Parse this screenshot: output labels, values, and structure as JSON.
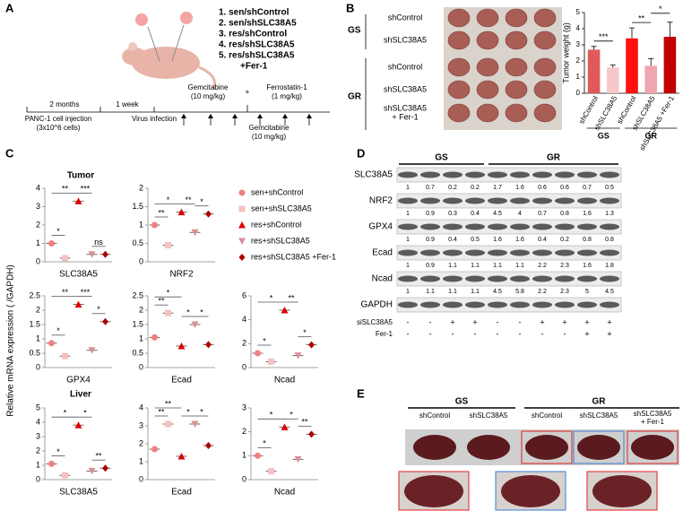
{
  "panel_labels": [
    "A",
    "B",
    "C",
    "D",
    "E"
  ],
  "panel_a": {
    "groups": [
      "1. sen/shControl",
      "2. sen/shSLC38A5",
      "3. res/shControl",
      "4. res/shSLC38A5",
      "5. res/shSLC38A5",
      "+Fer-1"
    ],
    "start": [
      "PANC-1 cell injection",
      "(3x10^6 cells)"
    ],
    "interval1": "2 months",
    "interval2": "1 week",
    "virus": "Virus infection",
    "treatment_top": [
      "Gemcitabine",
      "(10 mg/kg)",
      "+",
      "Ferrostatin-1",
      "(1 mg/kg)"
    ],
    "treatment_bottom": [
      "Gemcitabine",
      "(10 mg/kg)"
    ]
  },
  "panel_b_photo": {
    "groups": [
      "GS",
      "GR"
    ],
    "rows": [
      "shControl",
      "shSLC38A5",
      "shControl",
      "shSLC38A5",
      "shSLC38A5",
      "+ Fer-1"
    ]
  },
  "chart_data": [
    {
      "type": "bar",
      "ylabel": "Tumor weight (g)",
      "categories": [
        "shControl",
        "shSLC38A5",
        "shControl",
        "shSLC38A5",
        "shSLC38A5 +Fer-1"
      ],
      "values": [
        2.7,
        1.6,
        3.4,
        1.7,
        3.5
      ],
      "errors": [
        0.2,
        0.15,
        0.65,
        0.45,
        0.9
      ],
      "colors": [
        "#e05a5a",
        "#f7c8c8",
        "#ff1010",
        "#f0a6b0",
        "#c00000"
      ],
      "groups": [
        "GS",
        "GR"
      ],
      "significance": [
        "***",
        "**",
        "*"
      ],
      "ylim": [
        0,
        5
      ],
      "yticks": [
        0,
        1,
        2,
        3,
        4,
        5
      ]
    },
    {
      "type": "dot",
      "xlabel": "SLC38A5",
      "values": [
        1.0,
        0.2,
        3.3,
        0.4,
        0.4
      ],
      "significance": [
        "*",
        "**",
        "***",
        "ns"
      ],
      "ylim": [
        0,
        4
      ],
      "yticks": [
        0,
        1,
        2,
        3,
        4
      ]
    },
    {
      "type": "dot",
      "xlabel": "NRF2",
      "values": [
        1.0,
        0.45,
        1.35,
        0.8,
        1.3
      ],
      "significance": [
        "**",
        "*",
        "**",
        "*"
      ],
      "ylim": [
        0,
        2
      ],
      "yticks": [
        0,
        0.5,
        1,
        1.5,
        2
      ]
    },
    {
      "type": "dot",
      "xlabel": "GPX4",
      "values": [
        0.85,
        0.4,
        2.2,
        0.6,
        1.6
      ],
      "significance": [
        "*",
        "**",
        "***",
        "*"
      ],
      "ylim": [
        0,
        2.5
      ],
      "yticks": [
        0,
        0.5,
        1,
        1.5,
        2,
        2.5
      ]
    },
    {
      "type": "dot",
      "xlabel": "Ecad",
      "values": [
        1.05,
        1.9,
        0.75,
        1.5,
        0.8
      ],
      "significance": [
        "**",
        "*",
        "*",
        "*"
      ],
      "ylim": [
        0,
        2.5
      ],
      "yticks": [
        0,
        0.5,
        1,
        1.5,
        2,
        2.5
      ]
    },
    {
      "type": "dot",
      "xlabel": "Ncad",
      "values": [
        1.2,
        0.5,
        4.8,
        1.0,
        1.9
      ],
      "significance": [
        "*",
        "*",
        "**",
        "*"
      ],
      "ylim": [
        0,
        6
      ],
      "yticks": [
        0,
        2,
        4,
        6
      ]
    },
    {
      "type": "dot",
      "xlabel": "SLC38A5",
      "values": [
        1.1,
        0.3,
        3.8,
        0.6,
        0.8
      ],
      "significance": [
        "*",
        "*",
        "*",
        "**"
      ],
      "ylim": [
        0,
        5
      ],
      "yticks": [
        0,
        1,
        2,
        3,
        4,
        5
      ]
    },
    {
      "type": "dot",
      "xlabel": "Ecad",
      "values": [
        1.7,
        3.1,
        1.3,
        3.1,
        1.9
      ],
      "significance": [
        "**",
        "**",
        "*",
        "*"
      ],
      "ylim": [
        0,
        4
      ],
      "yticks": [
        0,
        1,
        2,
        3,
        4
      ]
    },
    {
      "type": "dot",
      "xlabel": "Ncad",
      "values": [
        1.0,
        0.35,
        2.2,
        0.85,
        1.9
      ],
      "significance": [
        "*",
        "*",
        "*",
        "**"
      ],
      "ylim": [
        0,
        3
      ],
      "yticks": [
        0,
        1,
        2,
        3
      ]
    }
  ],
  "panel_c": {
    "ylabel": "Relative mRNA expression ( /GAPDH)",
    "sections": [
      "Tumor",
      "Liver"
    ],
    "legend": [
      {
        "name": "sen+shControl",
        "color": "#f07f7f",
        "marker": "circle"
      },
      {
        "name": "sen+shSLC38A5",
        "color": "#f6c0c0",
        "marker": "square"
      },
      {
        "name": "res+shControl",
        "color": "#e00000",
        "marker": "triangle"
      },
      {
        "name": "res+shSLC38A5",
        "color": "#d99096",
        "marker": "triangle-down"
      },
      {
        "name": "res+shSLC38A5 +Fer-1",
        "color": "#b00000",
        "marker": "diamond"
      }
    ]
  },
  "panel_d": {
    "groups": [
      "GS",
      "GR"
    ],
    "rows": [
      {
        "name": "SLC38A5",
        "values": [
          1,
          0.7,
          0.2,
          0.2,
          1.7,
          1.6,
          0.6,
          0.6,
          0.7,
          0.5
        ]
      },
      {
        "name": "NRF2",
        "values": [
          1,
          0.9,
          0.3,
          0.4,
          4.5,
          4,
          0.7,
          0.8,
          1.6,
          1.3
        ]
      },
      {
        "name": "GPX4",
        "values": [
          1,
          0.9,
          0.4,
          0.5,
          1.6,
          1.6,
          0.4,
          0.2,
          0.8,
          0.8
        ]
      },
      {
        "name": "Ecad",
        "values": [
          1,
          0.9,
          1.1,
          1.1,
          1.1,
          1.1,
          2.2,
          2.3,
          1.6,
          1.8
        ]
      },
      {
        "name": "Ncad",
        "values": [
          1,
          1.1,
          1.1,
          1.1,
          4.5,
          5.8,
          2.2,
          2.3,
          5,
          4.5
        ]
      },
      {
        "name": "GAPDH"
      }
    ],
    "treatments": [
      {
        "name": "siSLC38A5",
        "signs": [
          "-",
          "-",
          "+",
          "+",
          "-",
          "-",
          "+",
          "+",
          "+",
          "+"
        ]
      },
      {
        "name": "Fer-1",
        "signs": [
          "-",
          "-",
          "-",
          "-",
          "-",
          "-",
          "-",
          "-",
          "+",
          "+"
        ]
      }
    ]
  },
  "panel_e": {
    "groups": [
      "GS",
      "GR"
    ],
    "columns": [
      "shControl",
      "shSLC38A5",
      "shControl",
      "shSLC38A5",
      "shSLC38A5",
      "+ Fer-1"
    ]
  }
}
